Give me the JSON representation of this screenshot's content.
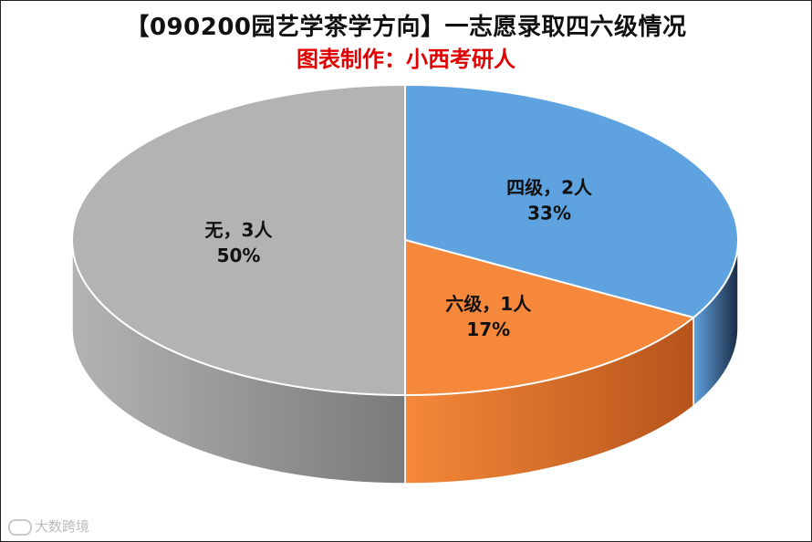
{
  "chart_data": {
    "type": "pie",
    "title": "【090200园艺学茶学方向】一志愿录取四六级情况",
    "subtitle": "图表制作：小西考研人",
    "slices": [
      {
        "name": "四级",
        "count_label": "2人",
        "value": 2,
        "percent_label": "33%",
        "color": "#5fa2e0",
        "side_color": "#1b2a44"
      },
      {
        "name": "六级",
        "count_label": "1人",
        "value": 1,
        "percent_label": "17%",
        "color": "#f5883a",
        "side_color": "#b5541b"
      },
      {
        "name": "无",
        "count_label": "3人",
        "value": 3,
        "percent_label": "50%",
        "color": "#b3b3b3",
        "side_color": "#7a7a7a"
      }
    ],
    "label_separator": "，",
    "style": "3d-pie"
  },
  "watermark": {
    "text": "大数跨境",
    "icon": "camera-logo-icon"
  }
}
